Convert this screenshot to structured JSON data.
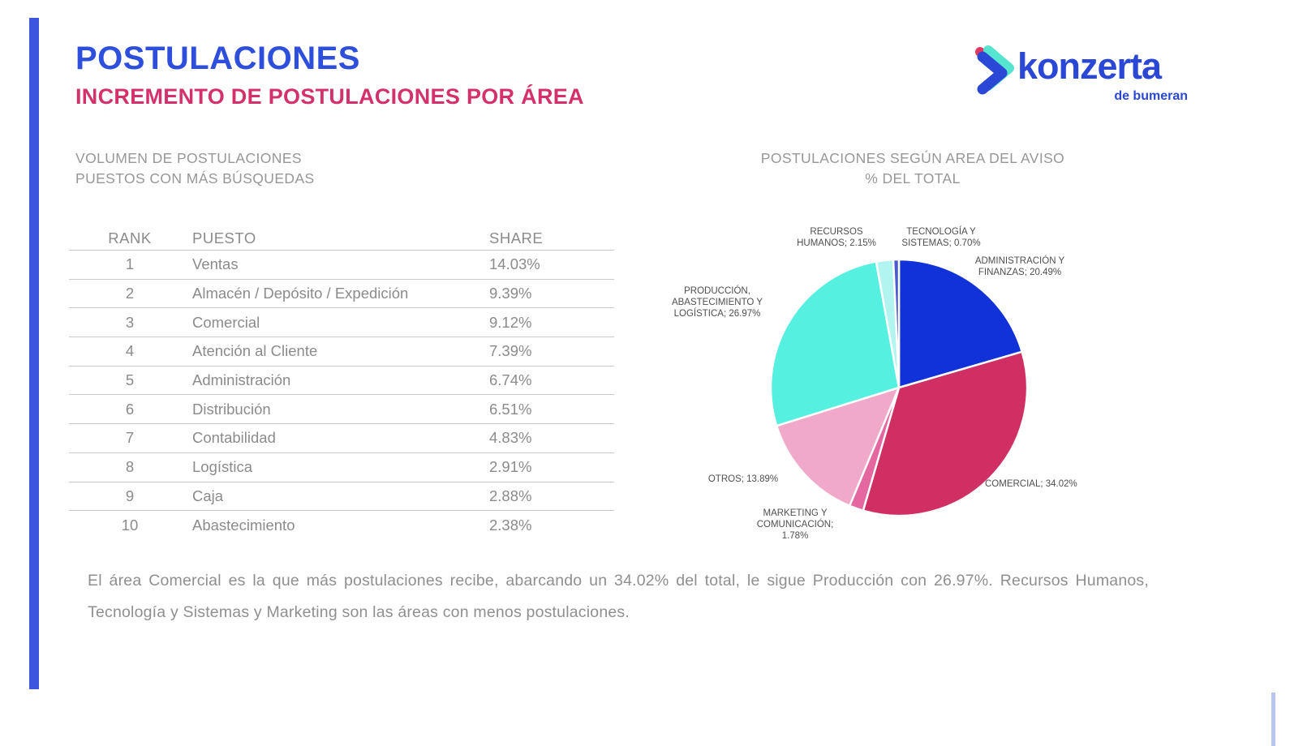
{
  "page": {
    "title": "POSTULACIONES",
    "subtitle": "INCREMENTO DE POSTULACIONES POR ÁREA"
  },
  "logo": {
    "brand": "konzerta",
    "sub_brand": "de bumeran",
    "colors": {
      "blue": "#2b47d6",
      "teal": "#56e3cf",
      "pink": "#e23a5e"
    }
  },
  "left_section": {
    "heading_line1": "VOLUMEN DE POSTULACIONES",
    "heading_line2": "PUESTOS CON MÁS BÚSQUEDAS",
    "table": {
      "columns": {
        "rank": "RANK",
        "puesto": "PUESTO",
        "share": "SHARE"
      },
      "rows": [
        {
          "rank": "1",
          "puesto": "Ventas",
          "share": "14.03%"
        },
        {
          "rank": "2",
          "puesto": "Almacén / Depósito / Expedición",
          "share": "9.39%"
        },
        {
          "rank": "3",
          "puesto": "Comercial",
          "share": "9.12%"
        },
        {
          "rank": "4",
          "puesto": "Atención al Cliente",
          "share": "7.39%"
        },
        {
          "rank": "5",
          "puesto": "Administración",
          "share": "6.74%"
        },
        {
          "rank": "6",
          "puesto": "Distribución",
          "share": "6.51%"
        },
        {
          "rank": "7",
          "puesto": "Contabilidad",
          "share": "4.83%"
        },
        {
          "rank": "8",
          "puesto": "Logística",
          "share": "2.91%"
        },
        {
          "rank": "9",
          "puesto": "Caja",
          "share": "2.88%"
        },
        {
          "rank": "10",
          "puesto": "Abastecimiento",
          "share": "2.38%"
        }
      ]
    }
  },
  "chart_section": {
    "heading_line1": "POSTULACIONES SEGÚN AREA DEL AVISO",
    "heading_line2": "% DEL TOTAL"
  },
  "chart_data": {
    "type": "pie",
    "title": "POSTULACIONES SEGÚN AREA DEL AVISO % DEL TOTAL",
    "unit": "percent",
    "direction": "clockwise",
    "start_angle_deg": 0,
    "stroke": "#ffffff",
    "segments": [
      {
        "id": "administracion-y-finanzas",
        "label": "ADMINISTRACIÓN Y FINANZAS",
        "value": 20.49,
        "color": "#1132d8",
        "display": "ADMINISTRACIÓN Y\nFINANZAS; 20.49%"
      },
      {
        "id": "comercial",
        "label": "COMERCIAL",
        "value": 34.02,
        "color": "#d02f63",
        "display": "COMERCIAL; 34.02%"
      },
      {
        "id": "marketing-y-comunicacion",
        "label": "MARKETING Y COMUNICACIÓN",
        "value": 1.78,
        "color": "#e5679f",
        "display": "MARKETING Y\nCOMUNICACIÓN;\n1.78%"
      },
      {
        "id": "otros",
        "label": "OTROS",
        "value": 13.89,
        "color": "#f0a9c8",
        "display": "OTROS; 13.89%"
      },
      {
        "id": "produccion-abastecimiento-y-logistica",
        "label": "PRODUCCIÓN, ABASTECIMIENTO Y LOGÍSTICA",
        "value": 26.97,
        "color": "#55f0e0",
        "display": "PRODUCCIÓN,\nABASTECIMIENTO Y\nLOGÍSTICA; 26.97%"
      },
      {
        "id": "recursos-humanos",
        "label": "RECURSOS HUMANOS",
        "value": 2.15,
        "color": "#b2f4ef",
        "display": "RECURSOS\nHUMANOS; 2.15%"
      },
      {
        "id": "tecnologia-y-sistemas",
        "label": "TECNOLOGÍA Y SISTEMAS",
        "value": 0.7,
        "color": "#4a59d0",
        "display": "TECNOLOGÍA Y\nSISTEMAS; 0.70%"
      }
    ]
  },
  "footer": {
    "note": "El área Comercial es la que más postulaciones recibe, abarcando un 34.02% del total, le sigue Producción con 26.97%. Recursos Humanos, Tecnología y Sistemas y Marketing son las áreas con menos postulaciones."
  },
  "accent": {
    "sidebar_color": "#3c57dd"
  }
}
